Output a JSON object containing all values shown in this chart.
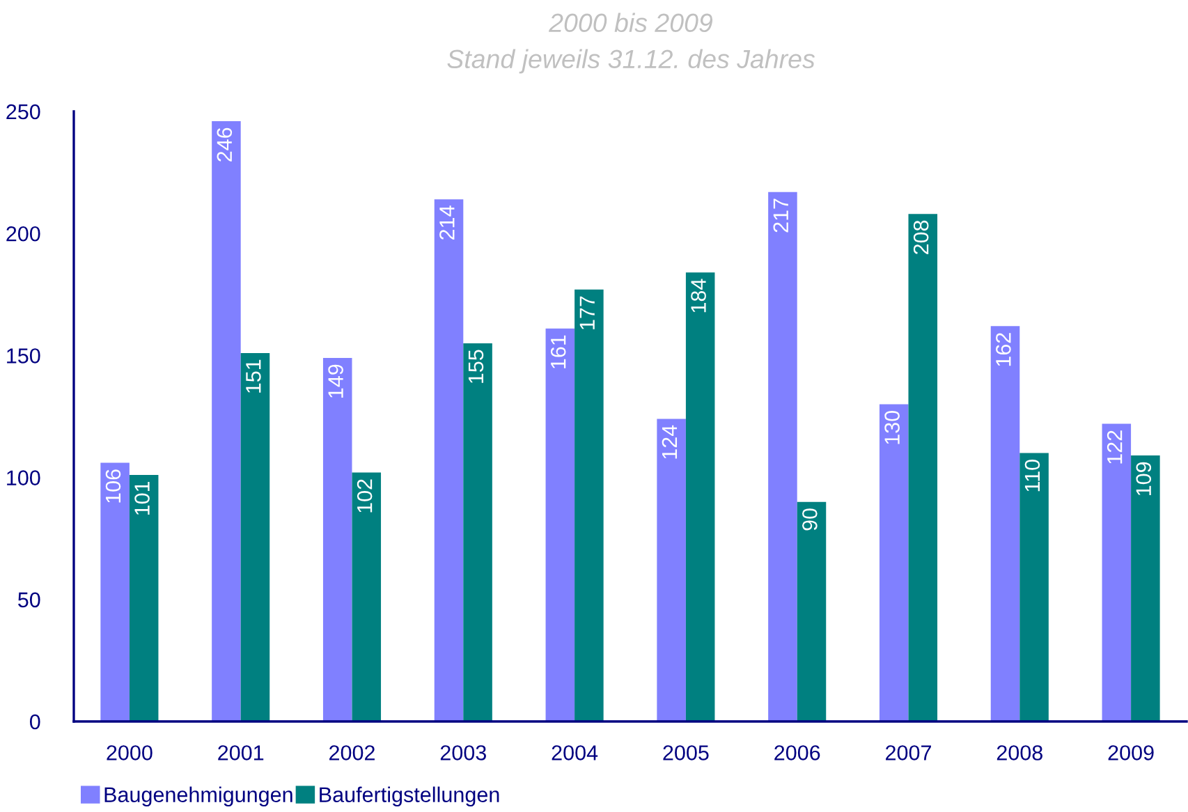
{
  "chart_data": {
    "type": "bar",
    "title": "2000 bis 2009",
    "subtitle": "Stand jeweils 31.12. des Jahres",
    "categories": [
      "2000",
      "2001",
      "2002",
      "2003",
      "2004",
      "2005",
      "2006",
      "2007",
      "2008",
      "2009"
    ],
    "series": [
      {
        "name": "Baugenehmigungen",
        "color": "#8080ff",
        "values": [
          106,
          246,
          149,
          214,
          161,
          124,
          217,
          130,
          162,
          122
        ]
      },
      {
        "name": "Baufertigstellungen",
        "color": "#008080",
        "values": [
          101,
          151,
          102,
          155,
          177,
          184,
          90,
          208,
          110,
          109
        ]
      }
    ],
    "ylim": [
      0,
      250
    ],
    "yticks": [
      0,
      50,
      100,
      150,
      200,
      250
    ],
    "data_labels": true,
    "legend": "bottom left",
    "grid": false
  }
}
